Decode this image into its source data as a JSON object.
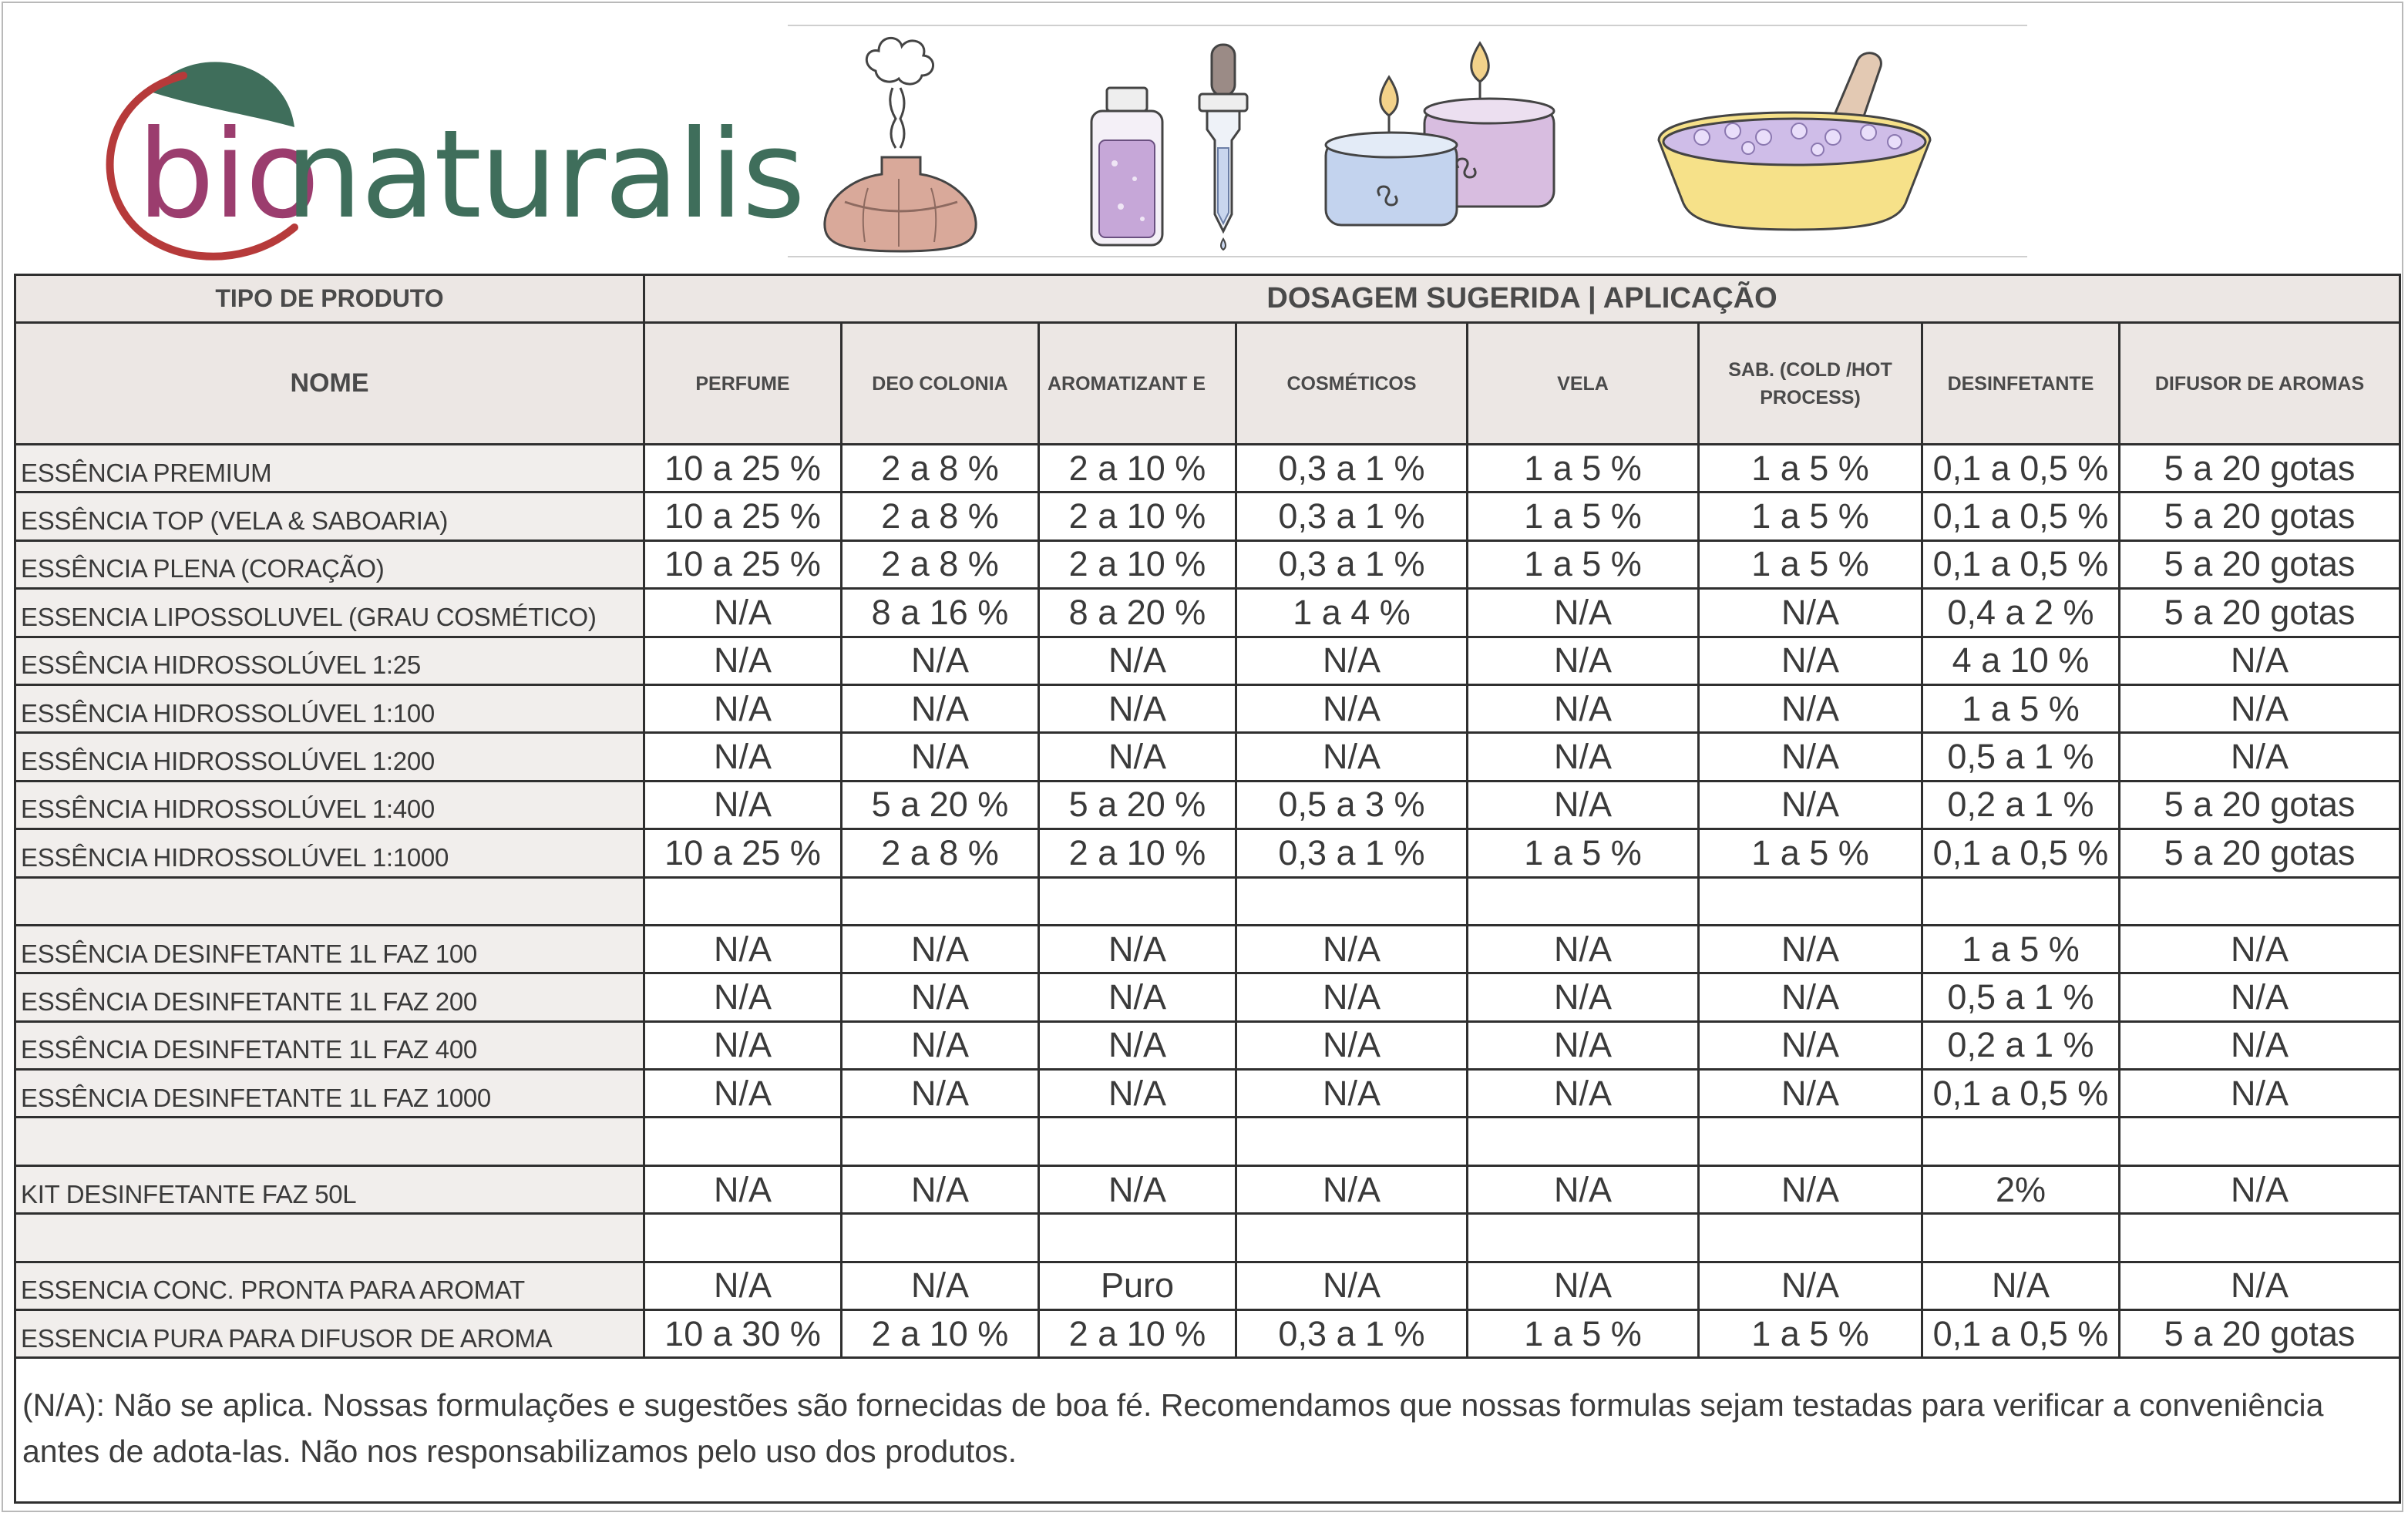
{
  "brand": {
    "logo_part1": "bio",
    "logo_part2": "naturalis",
    "colors": {
      "bio": "#9b3d6e",
      "naturalis": "#3f6e5b",
      "leaf": "#3f6e5b",
      "ring": "#b63a3a"
    }
  },
  "illustrations": [
    "diffuser-icon",
    "perfume-bottle-icon",
    "dropper-icon",
    "candles-icon",
    "soap-bowl-icon"
  ],
  "table": {
    "header": {
      "tipo": "TIPO DE PRODUTO",
      "group": "DOSAGEM SUGERIDA | APLICAÇÃO",
      "nome": "NOME",
      "columns": [
        "PERFUME",
        "DEO COLONIA",
        "AROMATIZANT E",
        "COSMÉTICOS",
        "VELA",
        "SAB. (COLD /HOT PROCESS)",
        "DESINFETANTE",
        "DIFUSOR DE AROMAS"
      ]
    },
    "rows": [
      {
        "name": "ESSÊNCIA PREMIUM",
        "values": [
          "10 a 25 %",
          "2 a 8 %",
          "2 a 10 %",
          "0,3 a 1 %",
          "1 a 5 %",
          "1 a 5 %",
          "0,1 a 0,5 %",
          "5 a 20 gotas"
        ]
      },
      {
        "name": "ESSÊNCIA TOP (VELA & SABOARIA)",
        "values": [
          "10 a 25 %",
          "2 a 8 %",
          "2 a 10 %",
          "0,3 a 1 %",
          "1 a 5 %",
          "1 a 5 %",
          "0,1 a 0,5 %",
          "5 a 20 gotas"
        ]
      },
      {
        "name": "ESSÊNCIA PLENA  (CORAÇÃO)",
        "values": [
          "10 a 25 %",
          "2 a 8 %",
          "2 a 10 %",
          "0,3 a 1 %",
          "1 a 5 %",
          "1 a 5 %",
          "0,1 a 0,5 %",
          "5 a 20 gotas"
        ]
      },
      {
        "name": "ESSENCIA LIPOSSOLUVEL (GRAU COSMÉTICO)",
        "values": [
          "N/A",
          "8 a 16 %",
          "8 a 20 %",
          "1 a 4 %",
          "N/A",
          "N/A",
          "0,4 a 2 %",
          "5 a 20 gotas"
        ]
      },
      {
        "name": "ESSÊNCIA HIDROSSOLÚVEL 1:25",
        "values": [
          "N/A",
          "N/A",
          "N/A",
          "N/A",
          "N/A",
          "N/A",
          "4 a 10 %",
          "N/A"
        ]
      },
      {
        "name": "ESSÊNCIA HIDROSSOLÚVEL 1:100",
        "values": [
          "N/A",
          "N/A",
          "N/A",
          "N/A",
          "N/A",
          "N/A",
          "1 a 5 %",
          "N/A"
        ]
      },
      {
        "name": "ESSÊNCIA HIDROSSOLÚVEL 1:200",
        "values": [
          "N/A",
          "N/A",
          "N/A",
          "N/A",
          "N/A",
          "N/A",
          "0,5 a 1 %",
          "N/A"
        ]
      },
      {
        "name": "ESSÊNCIA HIDROSSOLÚVEL 1:400",
        "values": [
          "N/A",
          "5 a 20 %",
          "5 a 20 %",
          "0,5 a 3 %",
          "N/A",
          "N/A",
          "0,2 a 1 %",
          "5 a 20 gotas"
        ]
      },
      {
        "name": "ESSÊNCIA HIDROSSOLÚVEL 1:1000",
        "values": [
          "10 a 25 %",
          "2 a 8 %",
          "2 a 10 %",
          "0,3 a 1 %",
          "1 a 5 %",
          "1 a 5 %",
          "0,1 a 0,5 %",
          "5 a 20 gotas"
        ]
      },
      {
        "name": "",
        "values": [
          "",
          "",
          "",
          "",
          "",
          "",
          "",
          ""
        ]
      },
      {
        "name": "ESSÊNCIA DESINFETANTE 1L FAZ 100",
        "values": [
          "N/A",
          "N/A",
          "N/A",
          "N/A",
          "N/A",
          "N/A",
          "1 a 5 %",
          "N/A"
        ]
      },
      {
        "name": "ESSÊNCIA DESINFETANTE 1L FAZ 200",
        "values": [
          "N/A",
          "N/A",
          "N/A",
          "N/A",
          "N/A",
          "N/A",
          "0,5 a 1 %",
          "N/A"
        ]
      },
      {
        "name": "ESSÊNCIA DESINFETANTE 1L FAZ 400",
        "values": [
          "N/A",
          "N/A",
          "N/A",
          "N/A",
          "N/A",
          "N/A",
          "0,2 a 1 %",
          "N/A"
        ]
      },
      {
        "name": "ESSÊNCIA DESINFETANTE 1L FAZ 1000",
        "values": [
          "N/A",
          "N/A",
          "N/A",
          "N/A",
          "N/A",
          "N/A",
          "0,1 a 0,5 %",
          "N/A"
        ]
      },
      {
        "name": "",
        "values": [
          "",
          "",
          "",
          "",
          "",
          "",
          "",
          ""
        ]
      },
      {
        "name": "KIT DESINFETANTE FAZ 50L",
        "values": [
          "N/A",
          "N/A",
          "N/A",
          "N/A",
          "N/A",
          "N/A",
          "2%",
          "N/A"
        ]
      },
      {
        "name": "",
        "values": [
          "",
          "",
          "",
          "",
          "",
          "",
          "",
          ""
        ]
      },
      {
        "name": "ESSENCIA CONC. PRONTA PARA AROMAT",
        "values": [
          "N/A",
          "N/A",
          "Puro",
          "N/A",
          "N/A",
          "N/A",
          "N/A",
          "N/A"
        ]
      },
      {
        "name": "ESSENCIA PURA PARA DIFUSOR DE AROMA",
        "values": [
          "10 a 30 %",
          "2 a 10 %",
          "2 a 10 %",
          "0,3 a 1 %",
          "1 a 5 %",
          "1 a 5 %",
          "0,1 a 0,5 %",
          "5 a 20 gotas"
        ]
      }
    ],
    "note": "(N/A): Não se aplica. Nossas formulações e sugestões são fornecidas de boa fé. Recomendamos que nossas formulas sejam testadas para verificar a conveniência antes de adota-las. Não nos responsabilizamos pelo uso dos produtos."
  }
}
